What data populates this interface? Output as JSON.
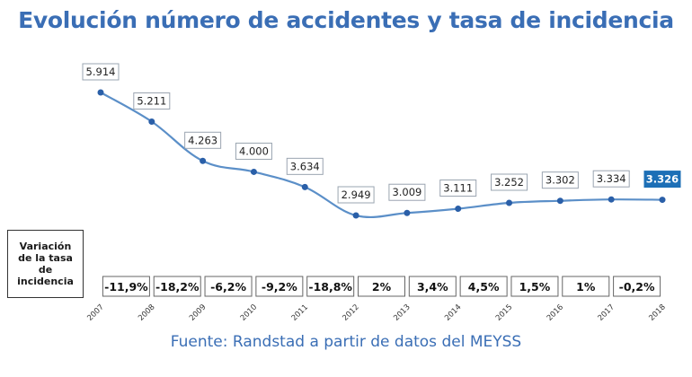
{
  "title": "Evolución número de accidentes y tasa de incidencia",
  "source": "Fuente: Randstad a partir de datos del MEYSS",
  "legend_label": "Variación de la tasa de incidencia",
  "colors": {
    "title": "#3a6eb5",
    "line": "#5b8fc8",
    "marker": "#2a5fa8",
    "highlight": "#1d6fb6"
  },
  "chart_data": {
    "type": "line",
    "title": "Evolución número de accidentes y tasa de incidencia",
    "categories": [
      "2007",
      "2008",
      "2009",
      "2010",
      "2011",
      "2012",
      "2013",
      "2014",
      "2015",
      "2016",
      "2017",
      "2018"
    ],
    "values": [
      5914,
      5211,
      4263,
      4000,
      3634,
      2949,
      3009,
      3111,
      3252,
      3302,
      3334,
      3326
    ],
    "value_labels": [
      "5.914",
      "5.211",
      "4.263",
      "4.000",
      "3.634",
      "2.949",
      "3.009",
      "3.111",
      "3.252",
      "3.302",
      "3.334",
      "3.326"
    ],
    "highlight_index": 11,
    "incidence_rate_change": [
      "-11,9%",
      "-18,2%",
      "-6,2%",
      "-9,2%",
      "-18,8%",
      "2%",
      "3,4%",
      "4,5%",
      "1,5%",
      "1%",
      "-0,2%"
    ],
    "ylim": [
      2400,
      6100
    ],
    "grid": false
  }
}
